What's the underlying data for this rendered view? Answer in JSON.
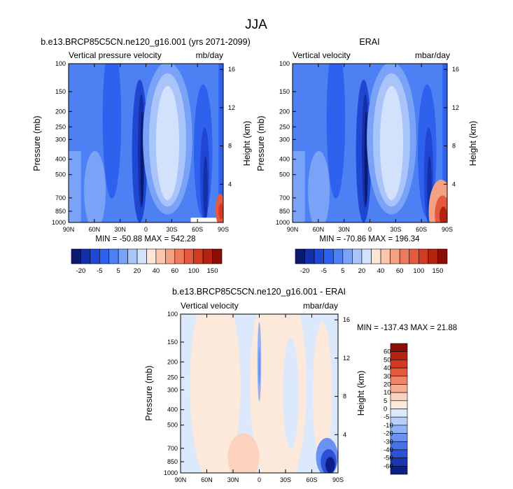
{
  "figure": {
    "title": "JJA"
  },
  "chart_data": [
    {
      "type": "heatmap",
      "title": "b.e13.BRCP85C5CN.ne120_g16.001 (yrs 2071-2099)",
      "left_label": "Vertical pressure velocity",
      "units": "mb/day",
      "ylabel": "Pressure (mb)",
      "ylabel_right": "Height (km)",
      "x_ticks": [
        "90N",
        "60N",
        "30N",
        "0",
        "30S",
        "60S",
        "90S"
      ],
      "y_ticks": [
        100,
        150,
        200,
        250,
        300,
        400,
        500,
        700,
        850,
        1000
      ],
      "height_ticks": [
        4,
        8,
        12,
        16
      ],
      "ylim": [
        1000,
        100
      ],
      "y_scale": "log",
      "stats": "MIN = -50.88  MAX = 542.28",
      "colorbar_labels": [
        "-20",
        "-5",
        "5",
        "20",
        "40",
        "60",
        "100",
        "150"
      ],
      "colorbar_colors": [
        "#0a1a6e",
        "#1430a8",
        "#1f47d2",
        "#2e62ee",
        "#4d80f3",
        "#7aa2f6",
        "#a8c4f9",
        "#d3e2fc",
        "#fde6d6",
        "#f9c7ac",
        "#f4a083",
        "#ee7a5d",
        "#e55a3e",
        "#d33a22",
        "#b5220f",
        "#8a0d06"
      ]
    },
    {
      "type": "heatmap",
      "title": "ERAI",
      "left_label": "Vertical velocity",
      "units": "mbar/day",
      "ylabel": "Pressure (mb)",
      "ylabel_right": "Height (km)",
      "x_ticks": [
        "90N",
        "60N",
        "30N",
        "0",
        "30S",
        "60S",
        "90S"
      ],
      "y_ticks": [
        100,
        150,
        200,
        250,
        300,
        400,
        500,
        700,
        850,
        1000
      ],
      "height_ticks": [
        4,
        8,
        12,
        16
      ],
      "ylim": [
        1000,
        100
      ],
      "y_scale": "log",
      "stats": "MIN = -70.86  MAX = 196.34",
      "colorbar_labels": [
        "-20",
        "-5",
        "5",
        "20",
        "40",
        "60",
        "100",
        "150"
      ],
      "colorbar_colors": [
        "#0a1a6e",
        "#1430a8",
        "#1f47d2",
        "#2e62ee",
        "#4d80f3",
        "#7aa2f6",
        "#a8c4f9",
        "#d3e2fc",
        "#fde6d6",
        "#f9c7ac",
        "#f4a083",
        "#ee7a5d",
        "#e55a3e",
        "#d33a22",
        "#b5220f",
        "#8a0d06"
      ]
    },
    {
      "type": "heatmap",
      "title": "b.e13.BRCP85C5CN.ne120_g16.001 - ERAI",
      "left_label": "Vertical velocity",
      "units": "mbar/day",
      "ylabel": "Pressure (mb)",
      "ylabel_right": "Height (km)",
      "x_ticks": [
        "90N",
        "60N",
        "30N",
        "0",
        "30S",
        "60S",
        "90S"
      ],
      "y_ticks": [
        100,
        150,
        200,
        250,
        300,
        400,
        500,
        700,
        850,
        1000
      ],
      "height_ticks": [
        4,
        8,
        12,
        16
      ],
      "ylim": [
        1000,
        100
      ],
      "y_scale": "log",
      "stats": "MIN = -137.43  MAX =  21.88",
      "colorbar_labels": [
        "60",
        "50",
        "40",
        "30",
        "20",
        "10",
        "5",
        "0",
        "-5",
        "-10",
        "-20",
        "-30",
        "-40",
        "-50",
        "-60"
      ],
      "colorbar_colors": [
        "#8a0d06",
        "#b5220f",
        "#d33a22",
        "#e55a3e",
        "#f08468",
        "#f6ad92",
        "#fad2bd",
        "#fde9dc",
        "#dce8fb",
        "#b9cff8",
        "#92b2f4",
        "#6b92f0",
        "#4672e8",
        "#2b52d6",
        "#1a36b2",
        "#0c1f86"
      ]
    }
  ]
}
